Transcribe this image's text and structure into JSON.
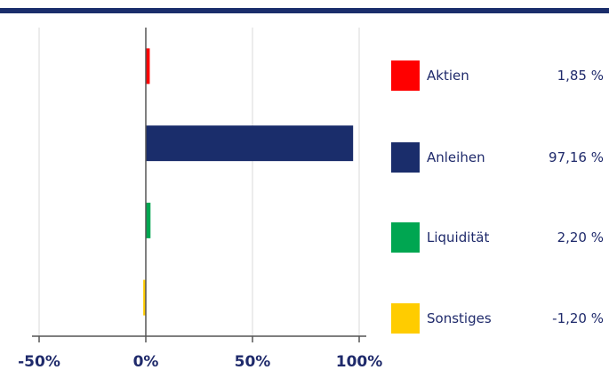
{
  "chart_data": {
    "type": "bar",
    "orientation": "horizontal",
    "categories": [
      "Aktien",
      "Anleihen",
      "Liquidität",
      "Sonstiges"
    ],
    "values": [
      1.85,
      97.16,
      2.2,
      -1.2
    ],
    "value_labels": [
      "1,85 %",
      "97,16 %",
      "2,20 %",
      "-1,20 %"
    ],
    "colors": [
      "#ff0000",
      "#1a2d6b",
      "#00a651",
      "#ffcc00"
    ],
    "xlim": [
      -50,
      100
    ],
    "xticks": [
      -50,
      0,
      50,
      100
    ],
    "xtick_labels": [
      "-50%",
      "0%",
      "50%",
      "100%"
    ],
    "grid": true,
    "legend_placement": "right"
  }
}
